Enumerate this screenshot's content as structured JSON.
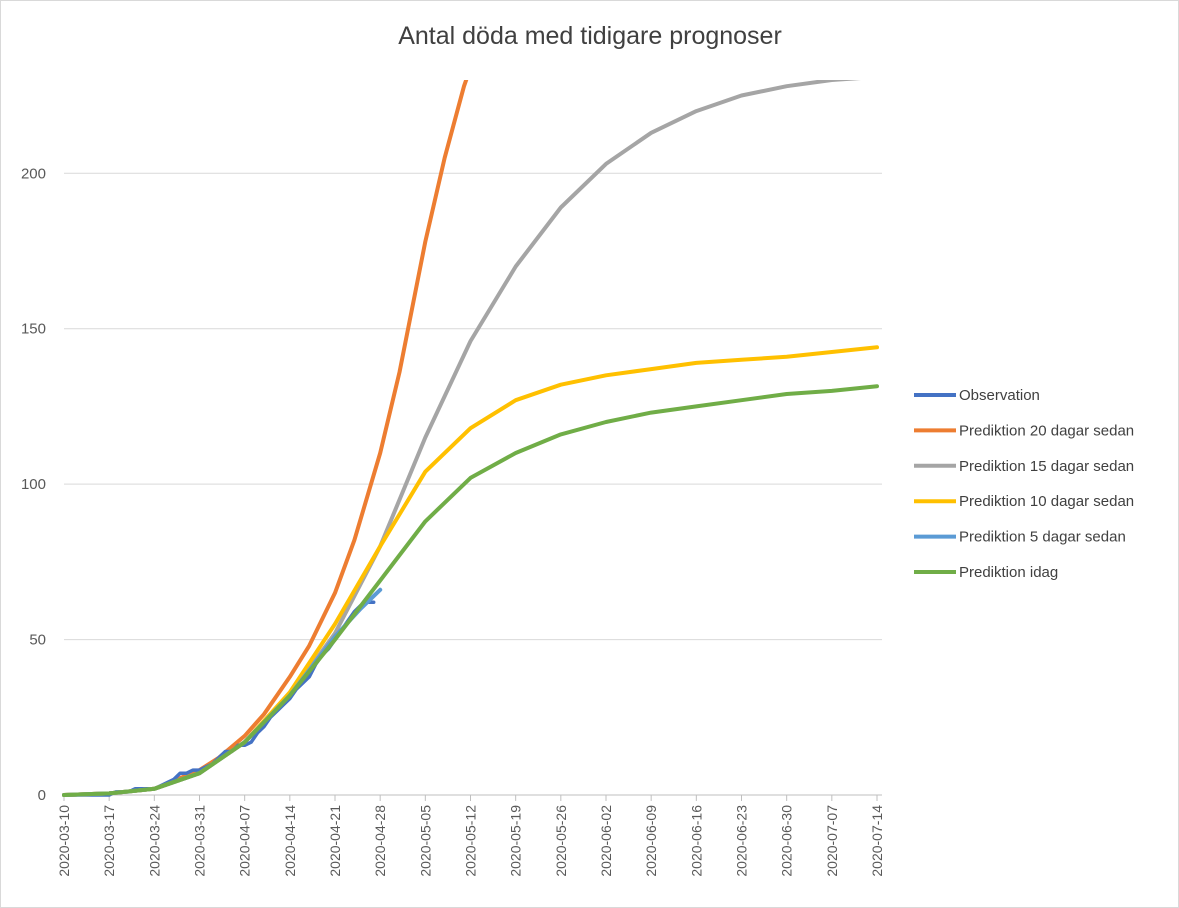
{
  "chart_data": {
    "type": "line",
    "title": "Antal döda med tidigare prognoser",
    "xlabel": "",
    "ylabel": "",
    "x_start": "2020-03-10",
    "x_end": "2020-07-14",
    "xlim": [
      "2020-03-10",
      "2020-07-14"
    ],
    "ylim": [
      0,
      230
    ],
    "y_ticks": [
      0,
      50,
      100,
      150,
      200
    ],
    "x_tick_labels": [
      "2020-03-10",
      "2020-03-17",
      "2020-03-24",
      "2020-03-31",
      "2020-04-07",
      "2020-04-14",
      "2020-04-21",
      "2020-04-28",
      "2020-05-05",
      "2020-05-12",
      "2020-05-19",
      "2020-05-26",
      "2020-06-02",
      "2020-06-09",
      "2020-06-16",
      "2020-06-23",
      "2020-06-30",
      "2020-07-07",
      "2020-07-14"
    ],
    "grid": "horizontal",
    "legend_position": "right",
    "series": [
      {
        "name": "Observation",
        "color": "#4472C4",
        "points": [
          [
            "2020-03-10",
            0
          ],
          [
            "2020-03-16",
            0
          ],
          [
            "2020-03-17",
            0
          ],
          [
            "2020-03-18",
            1
          ],
          [
            "2020-03-19",
            1
          ],
          [
            "2020-03-20",
            1
          ],
          [
            "2020-03-21",
            2
          ],
          [
            "2020-03-22",
            2
          ],
          [
            "2020-03-23",
            2
          ],
          [
            "2020-03-24",
            2
          ],
          [
            "2020-03-25",
            3
          ],
          [
            "2020-03-26",
            4
          ],
          [
            "2020-03-27",
            5
          ],
          [
            "2020-03-28",
            7
          ],
          [
            "2020-03-29",
            7
          ],
          [
            "2020-03-30",
            8
          ],
          [
            "2020-03-31",
            8
          ],
          [
            "2020-04-01",
            9
          ],
          [
            "2020-04-02",
            10
          ],
          [
            "2020-04-03",
            12
          ],
          [
            "2020-04-04",
            14
          ],
          [
            "2020-04-05",
            14
          ],
          [
            "2020-04-06",
            16
          ],
          [
            "2020-04-07",
            16
          ],
          [
            "2020-04-08",
            17
          ],
          [
            "2020-04-09",
            20
          ],
          [
            "2020-04-10",
            22
          ],
          [
            "2020-04-11",
            25
          ],
          [
            "2020-04-12",
            27
          ],
          [
            "2020-04-13",
            29
          ],
          [
            "2020-04-14",
            31
          ],
          [
            "2020-04-15",
            34
          ],
          [
            "2020-04-16",
            36
          ],
          [
            "2020-04-17",
            38
          ],
          [
            "2020-04-18",
            42
          ],
          [
            "2020-04-19",
            45
          ],
          [
            "2020-04-20",
            47
          ],
          [
            "2020-04-21",
            50
          ],
          [
            "2020-04-22",
            53
          ],
          [
            "2020-04-23",
            56
          ],
          [
            "2020-04-24",
            59
          ],
          [
            "2020-04-25",
            61
          ],
          [
            "2020-04-26",
            62
          ],
          [
            "2020-04-27",
            62
          ]
        ]
      },
      {
        "name": "Prediktion 20 dagar sedan",
        "color": "#ED7D31",
        "points": [
          [
            "2020-03-10",
            0
          ],
          [
            "2020-03-17",
            0.5
          ],
          [
            "2020-03-24",
            2
          ],
          [
            "2020-03-31",
            8
          ],
          [
            "2020-04-03",
            12
          ],
          [
            "2020-04-07",
            19
          ],
          [
            "2020-04-10",
            26
          ],
          [
            "2020-04-14",
            38
          ],
          [
            "2020-04-17",
            48
          ],
          [
            "2020-04-21",
            65
          ],
          [
            "2020-04-24",
            82
          ],
          [
            "2020-04-28",
            110
          ],
          [
            "2020-05-01",
            136
          ],
          [
            "2020-05-05",
            178
          ],
          [
            "2020-05-08",
            205
          ],
          [
            "2020-05-11",
            228
          ],
          [
            "2020-05-12",
            234
          ]
        ]
      },
      {
        "name": "Prediktion 15 dagar sedan",
        "color": "#A5A5A5",
        "points": [
          [
            "2020-03-10",
            0
          ],
          [
            "2020-03-17",
            0.5
          ],
          [
            "2020-03-24",
            2
          ],
          [
            "2020-03-31",
            7
          ],
          [
            "2020-04-07",
            17
          ],
          [
            "2020-04-14",
            32
          ],
          [
            "2020-04-21",
            52
          ],
          [
            "2020-04-28",
            80
          ],
          [
            "2020-05-05",
            115
          ],
          [
            "2020-05-12",
            146
          ],
          [
            "2020-05-19",
            170
          ],
          [
            "2020-05-26",
            189
          ],
          [
            "2020-06-02",
            203
          ],
          [
            "2020-06-09",
            213
          ],
          [
            "2020-06-16",
            220
          ],
          [
            "2020-06-23",
            225
          ],
          [
            "2020-06-30",
            228
          ],
          [
            "2020-07-07",
            230
          ],
          [
            "2020-07-14",
            231
          ]
        ]
      },
      {
        "name": "Prediktion 10 dagar sedan",
        "color": "#FFC000",
        "points": [
          [
            "2020-03-10",
            0
          ],
          [
            "2020-03-17",
            0.5
          ],
          [
            "2020-03-24",
            2
          ],
          [
            "2020-03-31",
            7
          ],
          [
            "2020-04-07",
            17
          ],
          [
            "2020-04-14",
            33
          ],
          [
            "2020-04-21",
            55
          ],
          [
            "2020-04-28",
            80
          ],
          [
            "2020-05-05",
            104
          ],
          [
            "2020-05-12",
            118
          ],
          [
            "2020-05-19",
            127
          ],
          [
            "2020-05-26",
            132
          ],
          [
            "2020-06-02",
            135
          ],
          [
            "2020-06-09",
            137
          ],
          [
            "2020-06-16",
            139
          ],
          [
            "2020-06-23",
            140
          ],
          [
            "2020-06-30",
            141
          ],
          [
            "2020-07-07",
            142.5
          ],
          [
            "2020-07-14",
            144
          ]
        ]
      },
      {
        "name": "Prediktion 5 dagar sedan",
        "color": "#5B9BD5",
        "points": [
          [
            "2020-03-10",
            0
          ],
          [
            "2020-03-17",
            0.5
          ],
          [
            "2020-03-24",
            2
          ],
          [
            "2020-03-31",
            7
          ],
          [
            "2020-04-07",
            17
          ],
          [
            "2020-04-14",
            32
          ],
          [
            "2020-04-21",
            51
          ],
          [
            "2020-04-25",
            60
          ],
          [
            "2020-04-28",
            66
          ]
        ]
      },
      {
        "name": "Prediktion idag",
        "color": "#70AD47",
        "points": [
          [
            "2020-03-10",
            0
          ],
          [
            "2020-03-17",
            0.5
          ],
          [
            "2020-03-24",
            2
          ],
          [
            "2020-03-31",
            7
          ],
          [
            "2020-04-07",
            17
          ],
          [
            "2020-04-14",
            32
          ],
          [
            "2020-04-21",
            50
          ],
          [
            "2020-04-28",
            69
          ],
          [
            "2020-05-05",
            88
          ],
          [
            "2020-05-12",
            102
          ],
          [
            "2020-05-19",
            110
          ],
          [
            "2020-05-26",
            116
          ],
          [
            "2020-06-02",
            120
          ],
          [
            "2020-06-09",
            123
          ],
          [
            "2020-06-16",
            125
          ],
          [
            "2020-06-23",
            127
          ],
          [
            "2020-06-30",
            129
          ],
          [
            "2020-07-07",
            130
          ],
          [
            "2020-07-14",
            131.5
          ]
        ]
      }
    ]
  }
}
